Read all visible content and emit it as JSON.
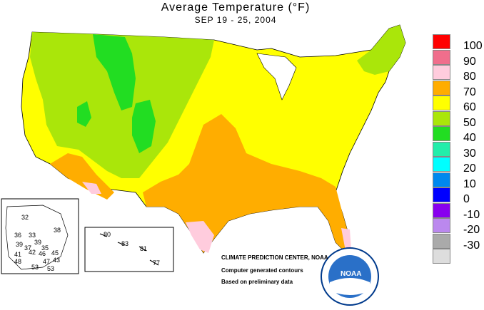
{
  "header": {
    "title": "Average Temperature (°F)",
    "subtitle": "SEP 19 - 25, 2004"
  },
  "legend": {
    "items": [
      {
        "label": "100",
        "color": "#ff0000"
      },
      {
        "label": "90",
        "color": "#f06e8c"
      },
      {
        "label": "80",
        "color": "#ffccdd"
      },
      {
        "label": "70",
        "color": "#ffad00"
      },
      {
        "label": "60",
        "color": "#ffff00"
      },
      {
        "label": "50",
        "color": "#aae60a"
      },
      {
        "label": "40",
        "color": "#22dd22"
      },
      {
        "label": "30",
        "color": "#22eeaa"
      },
      {
        "label": "20",
        "color": "#00ffff"
      },
      {
        "label": "10",
        "color": "#0088ee"
      },
      {
        "label": "0",
        "color": "#0000ff"
      },
      {
        "label": "-10",
        "color": "#8800ee"
      },
      {
        "label": "-20",
        "color": "#bb88ee"
      },
      {
        "label": "-30",
        "color": "#aaaaaa"
      },
      {
        "label": "",
        "color": "#dddddd"
      }
    ]
  },
  "alaska": {
    "stations": [
      "32",
      "38",
      "36",
      "33",
      "39",
      "39",
      "37",
      "42",
      "35",
      "41",
      "46",
      "45",
      "48",
      "47",
      "43",
      "53",
      "53"
    ]
  },
  "hawaii": {
    "stations": [
      "80",
      "83",
      "81",
      "77"
    ]
  },
  "credits": {
    "center": "CLIMATE PREDICTION CENTER, NOAA",
    "line2": "Computer generated contours",
    "line3": "Based on preliminary data",
    "logo_text": "NOAA"
  }
}
